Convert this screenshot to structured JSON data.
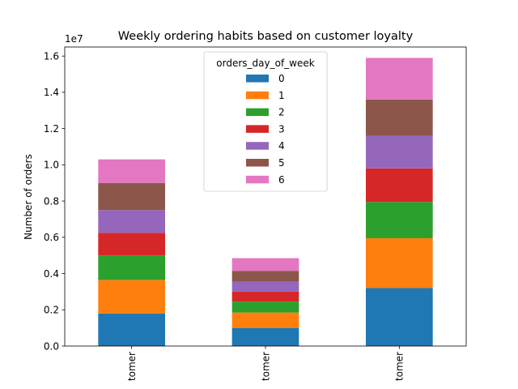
{
  "chart_data": {
    "type": "bar",
    "stacked": true,
    "title": "Weekly ordering habits based on customer loyalty",
    "xlabel": "",
    "ylabel": "Number of orders",
    "y_offset_label": "1e7",
    "ylim": [
      0,
      1.65
    ],
    "yticks": [
      0.0,
      0.2,
      0.4,
      0.6,
      0.8,
      1.0,
      1.2,
      1.4,
      1.6
    ],
    "ytick_labels": [
      "0.0",
      "0.2",
      "0.4",
      "0.6",
      "0.8",
      "1.0",
      "1.2",
      "1.4",
      "1.6"
    ],
    "categories": [
      "tomer",
      "tomer",
      "tomer"
    ],
    "legend": {
      "title": "orders_day_of_week",
      "placement": "top-center"
    },
    "series": [
      {
        "name": "0",
        "color": "#1f77b4",
        "values": [
          0.18,
          0.1,
          0.32
        ]
      },
      {
        "name": "1",
        "color": "#ff7f0e",
        "values": [
          0.185,
          0.085,
          0.275
        ]
      },
      {
        "name": "2",
        "color": "#2ca02c",
        "values": [
          0.135,
          0.06,
          0.2
        ]
      },
      {
        "name": "3",
        "color": "#d62728",
        "values": [
          0.125,
          0.055,
          0.185
        ]
      },
      {
        "name": "4",
        "color": "#9467bd",
        "values": [
          0.125,
          0.055,
          0.18
        ]
      },
      {
        "name": "5",
        "color": "#8c564b",
        "values": [
          0.15,
          0.06,
          0.2
        ]
      },
      {
        "name": "6",
        "color": "#e377c2",
        "values": [
          0.13,
          0.07,
          0.23
        ]
      }
    ]
  }
}
